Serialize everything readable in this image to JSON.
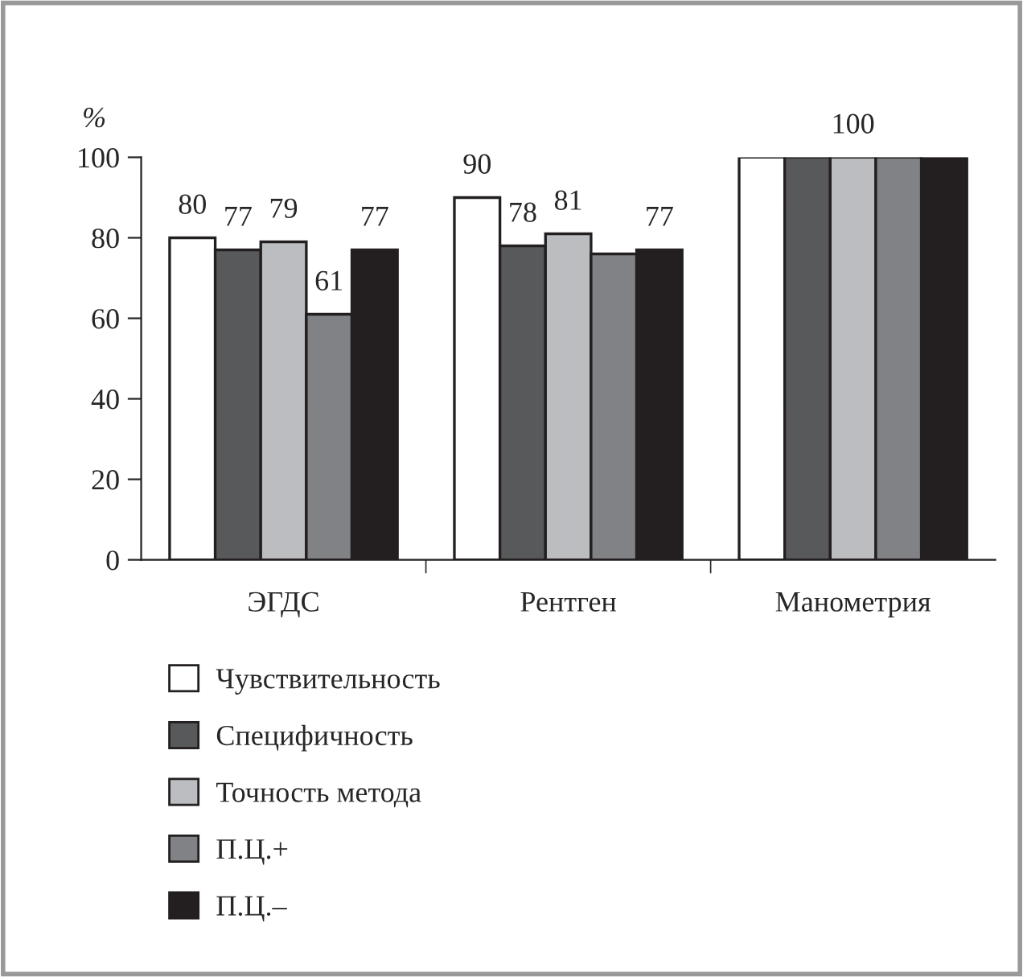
{
  "chart_data": {
    "type": "bar",
    "ylabel": "%",
    "categories": [
      "ЭГДС",
      "Рентген",
      "Манометрия"
    ],
    "series": [
      {
        "name": "Чувствительность",
        "color": "#ffffff",
        "values": [
          80,
          90,
          100
        ],
        "value_labels": [
          "80",
          "90",
          null
        ]
      },
      {
        "name": "Специфичность",
        "color": "#58595b",
        "values": [
          77,
          78,
          100
        ],
        "value_labels": [
          "77",
          "78",
          null
        ]
      },
      {
        "name": "Точность метода",
        "color": "#bcbdc0",
        "values": [
          79,
          81,
          100
        ],
        "value_labels": [
          "79",
          "81",
          "100"
        ]
      },
      {
        "name": "П.Ц.+",
        "color": "#808285",
        "values": [
          61,
          76,
          100
        ],
        "value_labels": [
          "61",
          null,
          null
        ]
      },
      {
        "name": "П.Ц.–",
        "color": "#231f20",
        "values": [
          77,
          77,
          100
        ],
        "value_labels": [
          "77",
          "77",
          null
        ]
      }
    ],
    "ylim": [
      0,
      100
    ],
    "yticks": [
      0,
      20,
      40,
      60,
      80,
      100
    ],
    "grid": false,
    "legend": "bottom"
  }
}
